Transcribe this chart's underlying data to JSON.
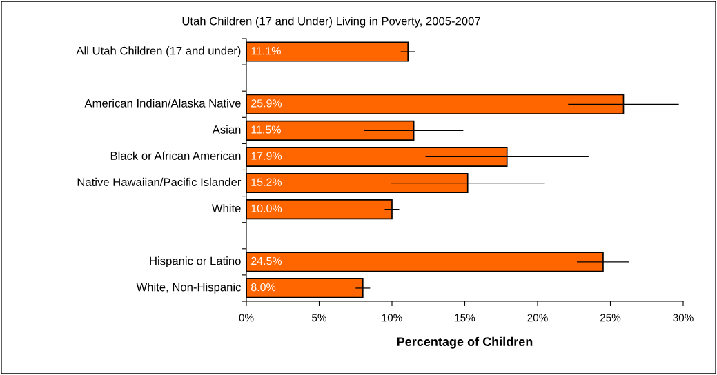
{
  "chart_data": {
    "type": "bar",
    "orientation": "horizontal",
    "title": "Utah Children (17 and Under) Living in Poverty, 2005-2007",
    "xlabel": "Percentage of Children",
    "categories": [
      "All Utah Children (17 and under)",
      null,
      "American Indian/Alaska Native",
      "Asian",
      "Black or African American",
      "Native Hawaiian/Pacific Islander",
      "White",
      null,
      "Hispanic or Latino",
      "White, Non-Hispanic"
    ],
    "values": [
      11.1,
      null,
      25.9,
      11.5,
      17.9,
      15.2,
      10.0,
      null,
      24.5,
      8.0
    ],
    "errors": [
      0.5,
      null,
      3.8,
      3.4,
      5.6,
      5.3,
      0.5,
      null,
      1.8,
      0.5
    ],
    "value_labels": [
      "11.1%",
      null,
      "25.9%",
      "11.5%",
      "17.9%",
      "15.2%",
      "10.0%",
      null,
      "24.5%",
      "8.0%"
    ],
    "color": "#ff6600",
    "xlim": [
      0,
      30
    ],
    "xticks": [
      {
        "value": 0,
        "label": "0%"
      },
      {
        "value": 5,
        "label": "5%"
      },
      {
        "value": 10,
        "label": "10%"
      },
      {
        "value": 15,
        "label": "15%"
      },
      {
        "value": 20,
        "label": "20%"
      },
      {
        "value": 25,
        "label": "25%"
      },
      {
        "value": 30,
        "label": "30%"
      }
    ],
    "grid": false,
    "legend": false
  }
}
